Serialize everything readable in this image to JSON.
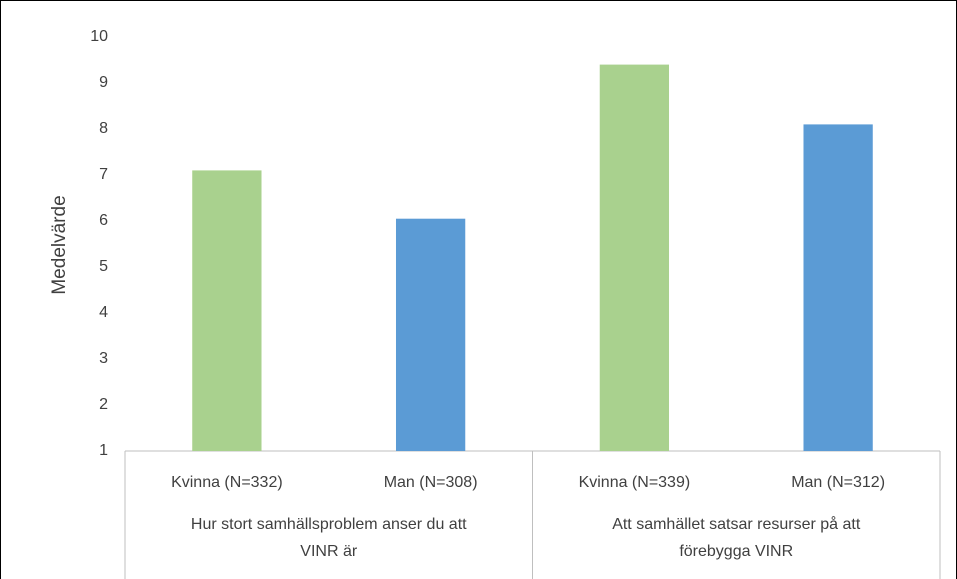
{
  "chart_data": {
    "type": "bar",
    "y_label": "Medelvärde",
    "groups": [
      {
        "label": [
          "Hur stort samhällsproblem anser du att",
          "VINR är"
        ],
        "categories": [
          "Kvinna (N=332)",
          "Man (N=308)"
        ],
        "values": [
          7.1,
          6.05
        ],
        "colors": [
          "#a9d18e",
          "#5b9bd5"
        ]
      },
      {
        "label": [
          "Att samhället satsar resurser på att",
          "förebygga VINR"
        ],
        "categories": [
          "Kvinna (N=339)",
          "Man (N=312)"
        ],
        "values": [
          9.4,
          8.1
        ],
        "colors": [
          "#a9d18e",
          "#5b9bd5"
        ]
      }
    ],
    "ylim": [
      1,
      10
    ],
    "yticks": [
      1,
      2,
      3,
      4,
      5,
      6,
      7,
      8,
      9,
      10
    ],
    "grid": false
  }
}
